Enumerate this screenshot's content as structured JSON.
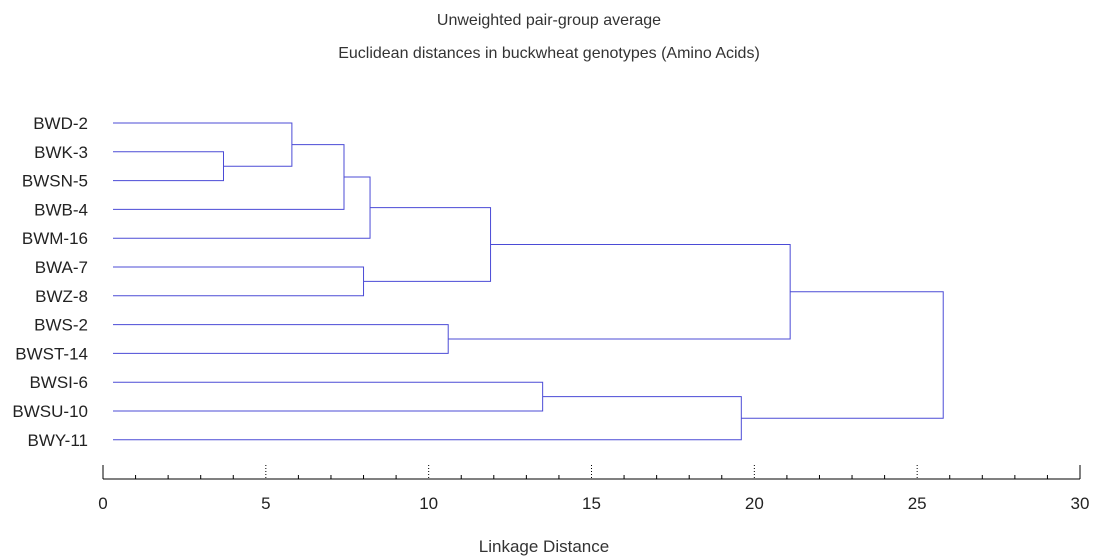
{
  "chart_data": {
    "type": "dendrogram",
    "title": "Unweighted pair-group average",
    "subtitle": "Euclidean distances in buckwheat genotypes (Amino Acids)",
    "xlabel": "Linkage Distance",
    "xlim": [
      0,
      30
    ],
    "xticks": [
      0,
      5,
      10,
      15,
      20,
      25,
      30
    ],
    "tick_labels": [
      "0",
      "5",
      "10",
      "15",
      "20",
      "25",
      "30"
    ],
    "leaves": [
      "BWD-2",
      "BWK-3",
      "BWSN-5",
      "BWB-4",
      "BWM-16",
      "BWA-7",
      "BWZ-8",
      "BWS-2",
      "BWST-14",
      "BWSI-6",
      "BWSU-10",
      "BWY-11"
    ],
    "merges": [
      {
        "left": "BWK-3",
        "right": "BWSN-5",
        "height": 3.7
      },
      {
        "left": "BWD-2",
        "right": "C1",
        "height": 5.8
      },
      {
        "left": "C2",
        "right": "BWB-4",
        "height": 7.4
      },
      {
        "left": "C3",
        "right": "BWM-16",
        "height": 8.2
      },
      {
        "left": "BWA-7",
        "right": "BWZ-8",
        "height": 8.0
      },
      {
        "left": "C4",
        "right": "C5",
        "height": 11.9
      },
      {
        "left": "BWS-2",
        "right": "BWST-14",
        "height": 10.6
      },
      {
        "left": "C6",
        "right": "C7",
        "height": 21.1
      },
      {
        "left": "BWSI-6",
        "right": "BWSU-10",
        "height": 13.5
      },
      {
        "left": "C9",
        "right": "BWY-11",
        "height": 19.6
      },
      {
        "left": "C8",
        "right": "C10",
        "height": 25.8
      }
    ],
    "line_color": "#4b4bd6"
  }
}
